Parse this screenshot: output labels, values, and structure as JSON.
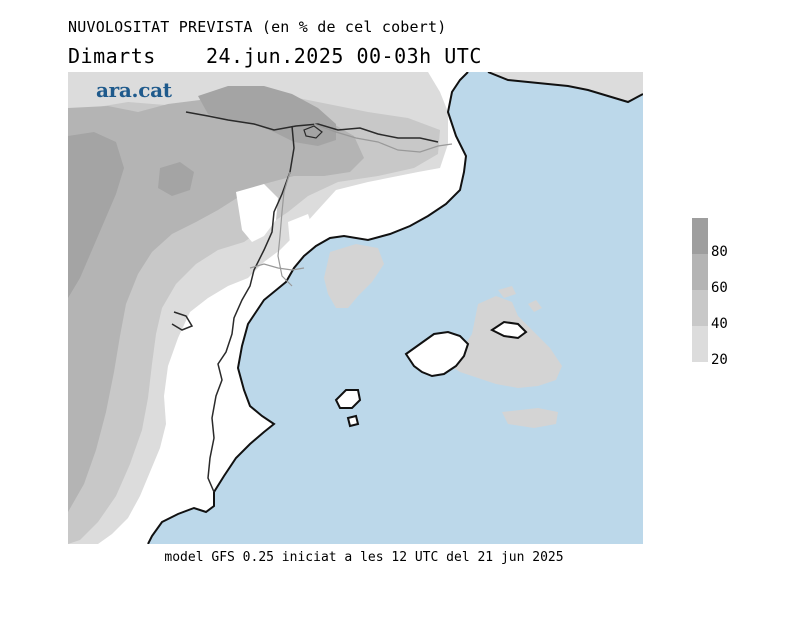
{
  "header": {
    "title": "NUVOLOSITAT PREVISTA (en % de cel cobert)",
    "day": "Dimarts",
    "date": "24.jun.2025",
    "interval": "00-03h UTC"
  },
  "map": {
    "brand": "ara.cat",
    "brand_color": "#1f5a8c",
    "sea_color": "#bcd8ea",
    "land_color": "#ffffff",
    "coast_color": "#111111",
    "border_color": "#2a2a2a",
    "region_line_color": "#999999"
  },
  "legend": {
    "levels": [
      {
        "from": 80,
        "color": "#9e9e9e"
      },
      {
        "from": 60,
        "color": "#b4b4b4"
      },
      {
        "from": 40,
        "color": "#c8c8c8"
      },
      {
        "from": 20,
        "color": "#dcdcdc"
      }
    ],
    "labels": [
      "80",
      "60",
      "40",
      "20"
    ]
  },
  "footer": {
    "text": "model GFS 0.25 iniciat a les 12 UTC del 21 jun 2025"
  }
}
